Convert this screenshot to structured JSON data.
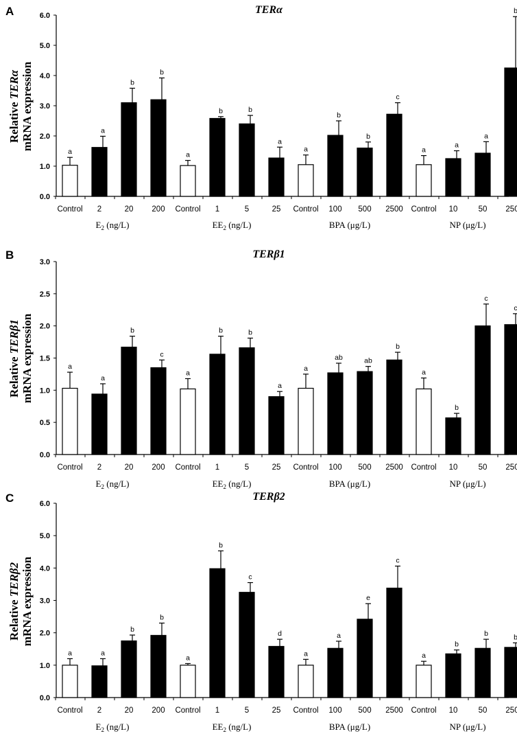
{
  "chart_data": [
    {
      "type": "bar",
      "panel_label": "A",
      "title": "TERα",
      "ylabel_prefix": "Relative ",
      "ylabel_gene": "TERα",
      "ylabel_line2": "mRNA expression",
      "ylim": [
        0,
        6
      ],
      "yticks": [
        "0.0",
        "1.0",
        "2.0",
        "3.0",
        "4.0",
        "5.0",
        "6.0"
      ],
      "categories": [
        "Control",
        "2",
        "20",
        "200",
        "Control",
        "1",
        "5",
        "25",
        "Control",
        "100",
        "500",
        "2500",
        "Control",
        "10",
        "50",
        "250"
      ],
      "values": [
        1.03,
        1.62,
        3.1,
        3.2,
        1.02,
        2.58,
        2.4,
        1.27,
        1.05,
        2.02,
        1.6,
        2.72,
        1.05,
        1.25,
        1.43,
        4.25
      ],
      "errors": [
        0.26,
        0.37,
        0.48,
        0.72,
        0.17,
        0.06,
        0.28,
        0.36,
        0.32,
        0.48,
        0.2,
        0.38,
        0.3,
        0.26,
        0.38,
        1.7
      ],
      "labels": [
        "a",
        "a",
        "b",
        "b",
        "a",
        "b",
        "b",
        "a",
        "a",
        "b",
        "b",
        "c",
        "a",
        "a",
        "a",
        "b"
      ],
      "control_flags": [
        true,
        false,
        false,
        false,
        true,
        false,
        false,
        false,
        true,
        false,
        false,
        false,
        true,
        false,
        false,
        false
      ],
      "groups": [
        {
          "name": "E",
          "sub": "2",
          "rest": " (ng/L)"
        },
        {
          "name": "EE",
          "sub": "2",
          "rest": "  (ng/L)"
        },
        {
          "name": "BPA",
          "sub": "",
          "rest": "  (μg/L)"
        },
        {
          "name": "NP",
          "sub": "",
          "rest": "  (μg/L)"
        }
      ]
    },
    {
      "type": "bar",
      "panel_label": "B",
      "title": "TERβ1",
      "ylabel_prefix": "Relative ",
      "ylabel_gene": "TERβ1",
      "ylabel_line2": "mRNA expression",
      "ylim": [
        0,
        3
      ],
      "yticks": [
        "0.0",
        "0.5",
        "1.0",
        "1.5",
        "2.0",
        "2.5",
        "3.0"
      ],
      "categories": [
        "Control",
        "2",
        "20",
        "200",
        "Control",
        "1",
        "5",
        "25",
        "Control",
        "100",
        "500",
        "2500",
        "Control",
        "10",
        "50",
        "250"
      ],
      "values": [
        1.03,
        0.94,
        1.67,
        1.35,
        1.02,
        1.56,
        1.66,
        0.9,
        1.03,
        1.27,
        1.29,
        1.47,
        1.02,
        0.57,
        2.0,
        2.02
      ],
      "errors": [
        0.25,
        0.16,
        0.17,
        0.12,
        0.16,
        0.28,
        0.15,
        0.08,
        0.22,
        0.15,
        0.08,
        0.12,
        0.17,
        0.07,
        0.34,
        0.17
      ],
      "labels": [
        "a",
        "a",
        "b",
        "c",
        "a",
        "b",
        "b",
        "a",
        "a",
        "ab",
        "ab",
        "b",
        "a",
        "b",
        "c",
        "c"
      ],
      "control_flags": [
        true,
        false,
        false,
        false,
        true,
        false,
        false,
        false,
        true,
        false,
        false,
        false,
        true,
        false,
        false,
        false
      ],
      "groups": [
        {
          "name": "E",
          "sub": "2",
          "rest": " (ng/L)"
        },
        {
          "name": "EE",
          "sub": "2",
          "rest": "  (ng/L)"
        },
        {
          "name": "BPA",
          "sub": "",
          "rest": "  (μg/L)"
        },
        {
          "name": "NP",
          "sub": "",
          "rest": "  (μg/L)"
        }
      ]
    },
    {
      "type": "bar",
      "panel_label": "C",
      "title": "TERβ2",
      "ylabel_prefix": "Relative ",
      "ylabel_gene": "TERβ2",
      "ylabel_line2": "mRNA expression",
      "ylim": [
        0,
        6
      ],
      "yticks": [
        "0.0",
        "1.0",
        "2.0",
        "3.0",
        "4.0",
        "5.0",
        "6.0"
      ],
      "categories": [
        "Control",
        "2",
        "20",
        "200",
        "Control",
        "1",
        "5",
        "25",
        "Control",
        "100",
        "500",
        "2500",
        "Control",
        "10",
        "50",
        "250"
      ],
      "values": [
        1.0,
        0.98,
        1.75,
        1.92,
        1.0,
        3.98,
        3.25,
        1.58,
        1.0,
        1.52,
        2.42,
        3.38,
        1.0,
        1.35,
        1.52,
        1.55
      ],
      "errors": [
        0.2,
        0.22,
        0.18,
        0.38,
        0.05,
        0.55,
        0.3,
        0.22,
        0.18,
        0.22,
        0.48,
        0.68,
        0.12,
        0.12,
        0.28,
        0.14
      ],
      "labels": [
        "a",
        "a",
        "b",
        "b",
        "a",
        "b",
        "c",
        "d",
        "a",
        "a",
        "e",
        "c",
        "a",
        "b",
        "b",
        "b"
      ],
      "control_flags": [
        true,
        false,
        false,
        false,
        true,
        false,
        false,
        false,
        true,
        false,
        false,
        false,
        true,
        false,
        false,
        false
      ],
      "groups": [
        {
          "name": "E",
          "sub": "2",
          "rest": " (ng/L)"
        },
        {
          "name": "EE",
          "sub": "2",
          "rest": "  (ng/L)"
        },
        {
          "name": "BPA",
          "sub": "",
          "rest": "  (μg/L)"
        },
        {
          "name": "NP",
          "sub": "",
          "rest": "  (μg/L)"
        }
      ]
    }
  ]
}
